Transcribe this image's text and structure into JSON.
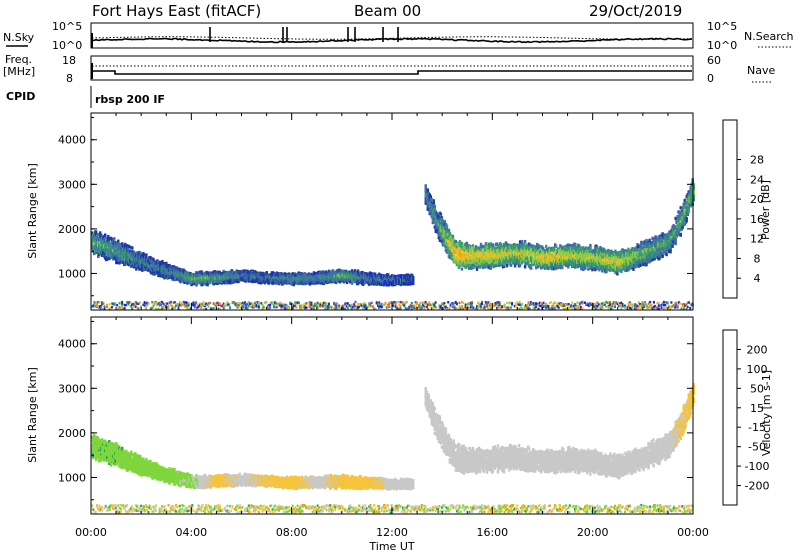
{
  "header": {
    "station": "Fort Hays East (fitACF)",
    "beam": "Beam 00",
    "date": "29/Oct/2019"
  },
  "strips": {
    "nsky_label": "N.Sky",
    "nsky_tick_top": "10^5",
    "nsky_tick_bottom": "10^0",
    "nsearch_label": "N.Search",
    "nsearch_tick_top": "10^5",
    "nsearch_tick_bottom": "10^0",
    "freq_label_1": "Freq.",
    "freq_label_2": "[MHz]",
    "freq_tick_top": "18",
    "freq_tick_bottom": "8",
    "nave_label": "Nave",
    "nave_tick_top": "60",
    "nave_tick_bottom": "0",
    "cpid_label": "CPID",
    "cpid_value": "rbsp 200 IF"
  },
  "colors": {
    "power": [
      "#1a1aff",
      "#1f3b9e",
      "#3f6fa8",
      "#3a9a70",
      "#8dc94a",
      "#f0c020",
      "#f39a1c",
      "#ee5a1a",
      "#e00000"
    ],
    "velocity": [
      "#e60000",
      "#f05a00",
      "#f59a00",
      "#f5c43c",
      "#c8c8c8",
      "#7ed63c",
      "#2fa05a",
      "#1f5aa8",
      "#1a1aff"
    ]
  },
  "chart_data": [
    {
      "type": "heatmap",
      "name": "power-panel",
      "ylabel": "Slant Range [km]",
      "xlabel": "",
      "ylim": [
        180,
        4600
      ],
      "xlim": [
        0,
        24
      ],
      "y_ticks": [
        "1000",
        "2000",
        "3000",
        "4000"
      ],
      "x_ticks": [
        "00:00",
        "04:00",
        "08:00",
        "12:00",
        "16:00",
        "20:00",
        "00:00"
      ],
      "colorbar_label": "Power [dB]",
      "colorbar_ticks": [
        "4",
        "8",
        "12",
        "16",
        "20",
        "24",
        "28"
      ],
      "bands": [
        {
          "t": [
            0.0,
            1.0,
            2.0,
            3.0,
            4.0,
            5.0,
            6.0,
            7.0,
            8.0,
            9.0,
            10.0,
            11.0,
            12.0,
            12.8
          ],
          "center": [
            1700,
            1500,
            1250,
            1050,
            880,
            900,
            950,
            900,
            880,
            900,
            950,
            880,
            850,
            860
          ],
          "width": [
            300,
            280,
            220,
            180,
            150,
            150,
            140,
            130,
            140,
            140,
            160,
            140,
            120,
            120
          ],
          "level": [
            14,
            12,
            10,
            10,
            14,
            13,
            10,
            9,
            12,
            10,
            14,
            10,
            8,
            8
          ]
        },
        {
          "t": [
            13.3,
            13.8,
            14.5,
            15.0,
            16.0,
            17.0,
            18.0,
            19.0,
            20.0,
            21.0,
            22.0,
            23.0,
            23.5,
            24.0
          ],
          "center": [
            2800,
            2100,
            1450,
            1380,
            1400,
            1450,
            1350,
            1400,
            1350,
            1250,
            1450,
            1700,
            2200,
            2900
          ],
          "width": [
            250,
            350,
            350,
            320,
            300,
            300,
            280,
            300,
            300,
            280,
            300,
            300,
            320,
            300
          ],
          "level": [
            10,
            12,
            22,
            20,
            19,
            17,
            20,
            18,
            17,
            19,
            14,
            13,
            13,
            16
          ]
        }
      ],
      "ground_level": 280
    },
    {
      "type": "heatmap",
      "name": "velocity-panel",
      "ylabel": "Slant Range [km]",
      "xlabel": "Time UT",
      "ylim": [
        180,
        4600
      ],
      "xlim": [
        0,
        24
      ],
      "y_ticks": [
        "1000",
        "2000",
        "3000",
        "4000"
      ],
      "x_ticks": [
        "00:00",
        "04:00",
        "08:00",
        "12:00",
        "16:00",
        "20:00",
        "00:00"
      ],
      "colorbar_label": "Velocity [m s-1]",
      "colorbar_ticks": [
        "-200",
        "-100",
        "-50",
        "-15",
        "15",
        "50",
        "100",
        "200"
      ],
      "bands": [
        {
          "t": [
            0.0,
            1.0,
            2.0,
            3.0,
            4.0,
            5.0,
            6.0,
            7.0,
            8.0,
            9.0,
            10.0,
            11.0,
            12.0,
            12.8
          ],
          "center": [
            1700,
            1500,
            1250,
            1050,
            900,
            920,
            950,
            920,
            880,
            900,
            900,
            880,
            850,
            860
          ],
          "width": [
            300,
            280,
            220,
            180,
            150,
            150,
            140,
            130,
            140,
            140,
            160,
            140,
            120,
            120
          ],
          "vel": [
            40,
            40,
            35,
            30,
            20,
            -30,
            0,
            -25,
            -30,
            0,
            -30,
            -30,
            0,
            0
          ]
        },
        {
          "t": [
            13.3,
            13.8,
            14.5,
            15.0,
            16.0,
            17.0,
            18.0,
            19.0,
            20.0,
            21.0,
            22.0,
            23.0,
            23.5,
            24.0
          ],
          "center": [
            2800,
            2100,
            1450,
            1380,
            1400,
            1450,
            1350,
            1400,
            1350,
            1250,
            1450,
            1700,
            2200,
            2900
          ],
          "width": [
            250,
            350,
            350,
            320,
            300,
            300,
            280,
            300,
            300,
            280,
            300,
            300,
            320,
            300
          ],
          "vel": [
            0,
            0,
            0,
            0,
            0,
            0,
            0,
            0,
            0,
            0,
            0,
            0,
            -20,
            -30
          ]
        }
      ],
      "ground_level": 300
    }
  ]
}
